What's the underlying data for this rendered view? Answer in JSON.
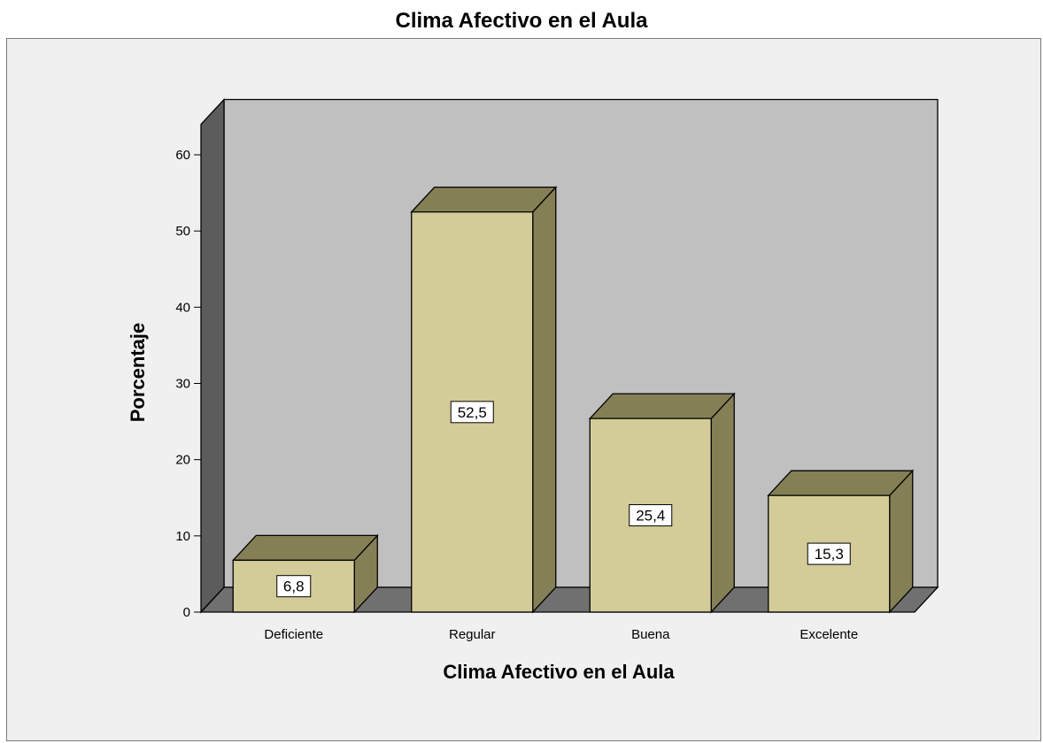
{
  "chart_data": {
    "type": "bar",
    "title": "Clima Afectivo en el Aula",
    "xlabel": "Clima Afectivo en el Aula",
    "ylabel": "Porcentaje",
    "categories": [
      "Deficiente",
      "Regular",
      "Buena",
      "Excelente"
    ],
    "values": [
      6.8,
      52.5,
      25.4,
      15.3
    ],
    "data_labels": [
      "6,8",
      "52,5",
      "25,4",
      "15,3"
    ],
    "yticks": [
      "0",
      "10",
      "20",
      "30",
      "40",
      "50",
      "60"
    ],
    "ylim": [
      0,
      64
    ],
    "grid": false,
    "legend": "none",
    "style": "3d",
    "colors": {
      "bar_front": "#d3cc98",
      "bar_top": "#857f56",
      "bar_side": "#857f56",
      "back_wall": "#c0c0c0",
      "floor": "#707070",
      "side_wall": "#5c5c5c",
      "frame_background": "#f0f0f0"
    }
  }
}
